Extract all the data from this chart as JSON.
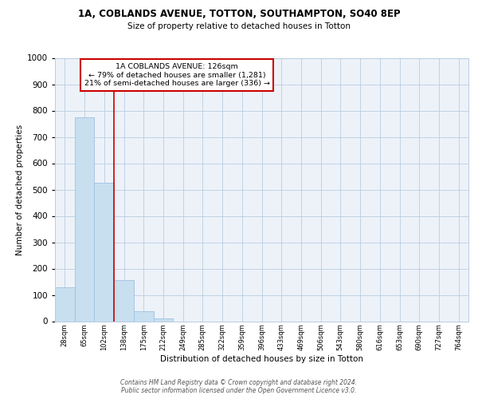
{
  "title_line1": "1A, COBLANDS AVENUE, TOTTON, SOUTHAMPTON, SO40 8EP",
  "title_line2": "Size of property relative to detached houses in Totton",
  "xlabel": "Distribution of detached houses by size in Totton",
  "ylabel": "Number of detached properties",
  "bar_categories": [
    "28sqm",
    "65sqm",
    "102sqm",
    "138sqm",
    "175sqm",
    "212sqm",
    "249sqm",
    "285sqm",
    "322sqm",
    "359sqm",
    "396sqm",
    "433sqm",
    "469sqm",
    "506sqm",
    "543sqm",
    "580sqm",
    "616sqm",
    "653sqm",
    "690sqm",
    "727sqm",
    "764sqm"
  ],
  "bar_values": [
    130,
    775,
    525,
    155,
    37,
    12,
    0,
    0,
    0,
    0,
    0,
    0,
    0,
    0,
    0,
    0,
    0,
    0,
    0,
    0,
    0
  ],
  "bar_color": "#c8dff0",
  "bar_edge_color": "#a0c0df",
  "annotation_text_line1": "1A COBLANDS AVENUE: 126sqm",
  "annotation_text_line2": "← 79% of detached houses are smaller (1,281)",
  "annotation_text_line3": "21% of semi-detached houses are larger (336) →",
  "ylim": [
    0,
    1000
  ],
  "yticks": [
    0,
    100,
    200,
    300,
    400,
    500,
    600,
    700,
    800,
    900,
    1000
  ],
  "background_color": "#edf2f9",
  "footer_text": "Contains HM Land Registry data © Crown copyright and database right 2024.\nPublic sector information licensed under the Open Government Licence v3.0.",
  "red_line_color": "#cc0000",
  "annotation_box_facecolor": "#ffffff",
  "annotation_box_edgecolor": "#cc0000"
}
